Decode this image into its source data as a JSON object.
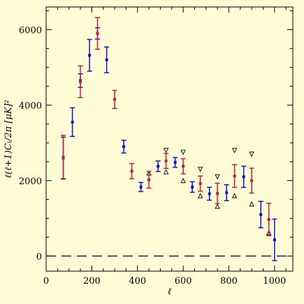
{
  "chart_data": {
    "type": "scatter",
    "title": "",
    "xlabel": "ℓ",
    "ylabel": "ℓ(ℓ+1)Cₗ/2π   [μK]²",
    "xlim": [
      0,
      1080
    ],
    "ylim": [
      -400,
      6600
    ],
    "x_ticks": [
      0,
      200,
      400,
      600,
      800,
      1000
    ],
    "x_tick_labels": [
      "0",
      "200",
      "400",
      "600",
      "800",
      "1000"
    ],
    "y_ticks": [
      0,
      2000,
      4000,
      6000
    ],
    "y_tick_labels": [
      "0",
      "2000",
      "4000",
      "6000"
    ],
    "grid": false,
    "legend": null,
    "colors": {
      "background": "#fffcd5",
      "blue": "#1010dd",
      "red": "#c81e3c",
      "axis": "#000000"
    },
    "zero_line": {
      "y": 0,
      "style": "dashed"
    },
    "series": [
      {
        "color": "blue",
        "points": [
          {
            "x": 75,
            "y": 2600,
            "err": 550
          },
          {
            "x": 115,
            "y": 3550,
            "err": 380
          },
          {
            "x": 150,
            "y": 4650,
            "err": 180
          },
          {
            "x": 190,
            "y": 5320,
            "err": 420
          },
          {
            "x": 225,
            "y": 5900,
            "err": 150
          },
          {
            "x": 265,
            "y": 5200,
            "err": 340
          },
          {
            "x": 340,
            "y": 2900,
            "err": 170
          },
          {
            "x": 415,
            "y": 1830,
            "err": 120
          },
          {
            "x": 490,
            "y": 2380,
            "err": 140
          },
          {
            "x": 565,
            "y": 2480,
            "err": 130
          },
          {
            "x": 640,
            "y": 1830,
            "err": 140
          },
          {
            "x": 715,
            "y": 1650,
            "err": 170
          },
          {
            "x": 790,
            "y": 1680,
            "err": 210
          },
          {
            "x": 865,
            "y": 2100,
            "err": 280
          },
          {
            "x": 940,
            "y": 1100,
            "err": 350
          },
          {
            "x": 1000,
            "y": 430,
            "err": 550
          }
        ]
      },
      {
        "color": "red",
        "points": [
          {
            "x": 75,
            "y": 2620,
            "err": 580
          },
          {
            "x": 150,
            "y": 4620,
            "err": 420
          },
          {
            "x": 225,
            "y": 5900,
            "err": 420
          },
          {
            "x": 300,
            "y": 4150,
            "err": 240
          },
          {
            "x": 375,
            "y": 2250,
            "err": 200
          },
          {
            "x": 450,
            "y": 2020,
            "err": 220
          },
          {
            "x": 525,
            "y": 2520,
            "err": 200
          },
          {
            "x": 600,
            "y": 2380,
            "err": 200
          },
          {
            "x": 675,
            "y": 1920,
            "err": 200
          },
          {
            "x": 750,
            "y": 1660,
            "err": 270
          },
          {
            "x": 825,
            "y": 2120,
            "err": 300
          },
          {
            "x": 900,
            "y": 2000,
            "err": 330
          },
          {
            "x": 975,
            "y": 970,
            "err": 430
          }
        ]
      },
      {
        "marker": "triangle-down",
        "points": [
          {
            "x": 525,
            "y": 2800
          },
          {
            "x": 600,
            "y": 2750
          },
          {
            "x": 675,
            "y": 2300
          },
          {
            "x": 750,
            "y": 2100
          },
          {
            "x": 825,
            "y": 2800
          },
          {
            "x": 900,
            "y": 2700
          }
        ]
      },
      {
        "marker": "triangle-up",
        "points": [
          {
            "x": 450,
            "y": 2200
          },
          {
            "x": 525,
            "y": 2230
          },
          {
            "x": 600,
            "y": 2000
          },
          {
            "x": 675,
            "y": 1600
          },
          {
            "x": 750,
            "y": 1320
          },
          {
            "x": 825,
            "y": 1600
          },
          {
            "x": 900,
            "y": 1380
          },
          {
            "x": 975,
            "y": 620
          }
        ]
      }
    ]
  }
}
